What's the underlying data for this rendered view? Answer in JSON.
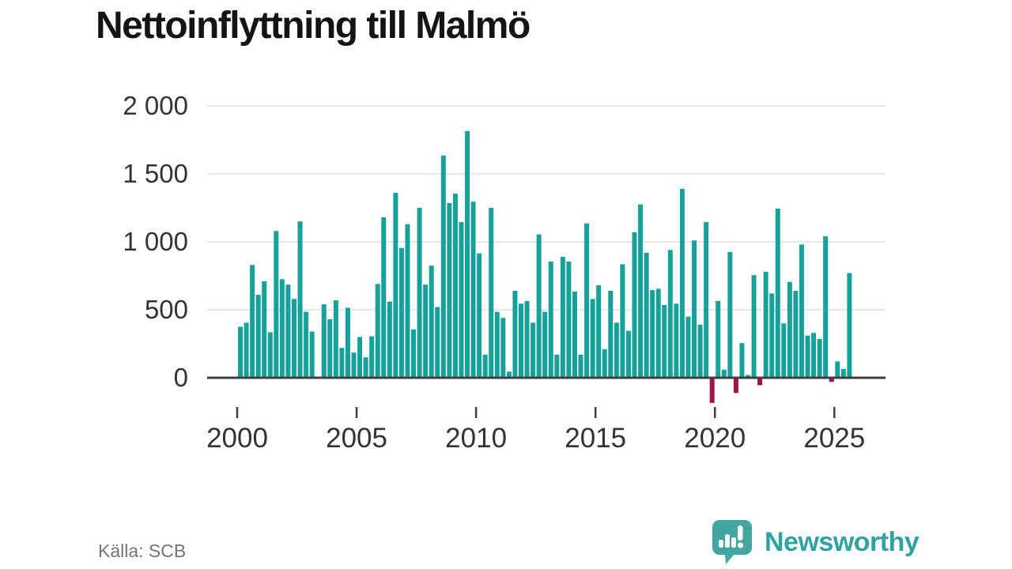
{
  "header": {
    "title": "Nettoinflyttning till Malmö"
  },
  "footer": {
    "source": "Källa: SCB",
    "brand": "Newsworthy",
    "brand_icon": "newsworthy-speech-bubble-chart-icon"
  },
  "colors": {
    "positive": "#16A29B",
    "negative": "#A3114A",
    "grid": "#E2E2E2",
    "axis": "#3F3F3F",
    "label": "#333333",
    "title": "#141414",
    "source": "#757575",
    "brand_icon": "#44A6A1",
    "brand_text": "#2EA3A1"
  },
  "chart_data": {
    "type": "bar",
    "title": "Nettoinflyttning till Malmö",
    "xlabel": "",
    "ylabel": "",
    "unit": "personer per kvartal",
    "grid": true,
    "legend_position": "none",
    "ylim": [
      -250,
      2100
    ],
    "x_start": "2000 Q1",
    "x_end": "2025 Q3",
    "y_ticks": [
      {
        "value": 0,
        "label": "0"
      },
      {
        "value": 500,
        "label": "500"
      },
      {
        "value": 1000,
        "label": "1 000"
      },
      {
        "value": 1500,
        "label": "1 500"
      },
      {
        "value": 2000,
        "label": "2 000"
      }
    ],
    "x_ticks": [
      {
        "label": "2000",
        "index": 0
      },
      {
        "label": "2005",
        "index": 20
      },
      {
        "label": "2010",
        "index": 40
      },
      {
        "label": "2015",
        "index": 60
      },
      {
        "label": "2020",
        "index": 80
      },
      {
        "label": "2025",
        "index": 100
      }
    ],
    "series": [
      {
        "name": "Nettoinflyttning till Malmö",
        "quarters": [
          "2000 Q1",
          "2000 Q2",
          "2000 Q3",
          "2000 Q4",
          "2001 Q1",
          "2001 Q2",
          "2001 Q3",
          "2001 Q4",
          "2002 Q1",
          "2002 Q2",
          "2002 Q3",
          "2002 Q4",
          "2003 Q1",
          "2003 Q2",
          "2003 Q3",
          "2003 Q4",
          "2004 Q1",
          "2004 Q2",
          "2004 Q3",
          "2004 Q4",
          "2005 Q1",
          "2005 Q2",
          "2005 Q3",
          "2005 Q4",
          "2006 Q1",
          "2006 Q2",
          "2006 Q3",
          "2006 Q4",
          "2007 Q1",
          "2007 Q2",
          "2007 Q3",
          "2007 Q4",
          "2008 Q1",
          "2008 Q2",
          "2008 Q3",
          "2008 Q4",
          "2009 Q1",
          "2009 Q2",
          "2009 Q3",
          "2009 Q4",
          "2010 Q1",
          "2010 Q2",
          "2010 Q3",
          "2010 Q4",
          "2011 Q1",
          "2011 Q2",
          "2011 Q3",
          "2011 Q4",
          "2012 Q1",
          "2012 Q2",
          "2012 Q3",
          "2012 Q4",
          "2013 Q1",
          "2013 Q2",
          "2013 Q3",
          "2013 Q4",
          "2014 Q1",
          "2014 Q2",
          "2014 Q3",
          "2014 Q4",
          "2015 Q1",
          "2015 Q2",
          "2015 Q3",
          "2015 Q4",
          "2016 Q1",
          "2016 Q2",
          "2016 Q3",
          "2016 Q4",
          "2017 Q1",
          "2017 Q2",
          "2017 Q3",
          "2017 Q4",
          "2018 Q1",
          "2018 Q2",
          "2018 Q3",
          "2018 Q4",
          "2019 Q1",
          "2019 Q2",
          "2019 Q3",
          "2019 Q4",
          "2020 Q1",
          "2020 Q2",
          "2020 Q3",
          "2020 Q4",
          "2021 Q1",
          "2021 Q2",
          "2021 Q3",
          "2021 Q4",
          "2022 Q1",
          "2022 Q2",
          "2022 Q3",
          "2022 Q4",
          "2023 Q1",
          "2023 Q2",
          "2023 Q3",
          "2023 Q4",
          "2024 Q1",
          "2024 Q2",
          "2024 Q3",
          "2024 Q4",
          "2025 Q1",
          "2025 Q2",
          "2025 Q3"
        ],
        "values": [
          375,
          405,
          830,
          610,
          710,
          335,
          1080,
          725,
          685,
          580,
          1150,
          485,
          340,
          0,
          540,
          430,
          570,
          220,
          515,
          185,
          300,
          150,
          305,
          690,
          1180,
          560,
          1360,
          955,
          1130,
          355,
          1250,
          685,
          825,
          520,
          1635,
          1285,
          1355,
          1145,
          1815,
          1295,
          915,
          170,
          1250,
          485,
          440,
          45,
          640,
          545,
          565,
          405,
          1055,
          485,
          855,
          170,
          890,
          855,
          635,
          170,
          1135,
          580,
          680,
          210,
          640,
          405,
          835,
          345,
          1070,
          1275,
          920,
          645,
          655,
          535,
          940,
          545,
          1390,
          450,
          1010,
          390,
          1145,
          -185,
          565,
          60,
          925,
          -112,
          255,
          20,
          755,
          -55,
          780,
          620,
          1245,
          400,
          705,
          640,
          980,
          310,
          330,
          285,
          1040,
          -30,
          120,
          65,
          770
        ]
      }
    ]
  }
}
